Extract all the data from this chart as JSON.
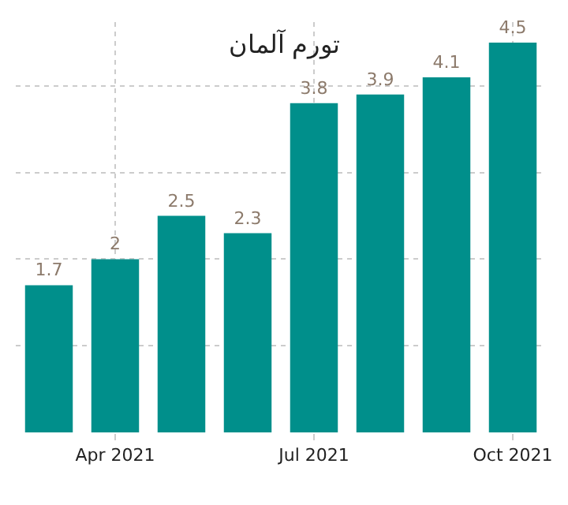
{
  "chart_data": {
    "type": "bar",
    "title": "تورم آلمان",
    "categories": [
      null,
      "Apr 2021",
      null,
      null,
      "Jul 2021",
      null,
      null,
      "Oct 2021"
    ],
    "values": [
      1.7,
      2,
      2.5,
      2.3,
      3.8,
      3.9,
      4.1,
      4.5
    ],
    "color": "#008f8b",
    "tick_labels": "x",
    "grid": true,
    "data_labels": true
  }
}
